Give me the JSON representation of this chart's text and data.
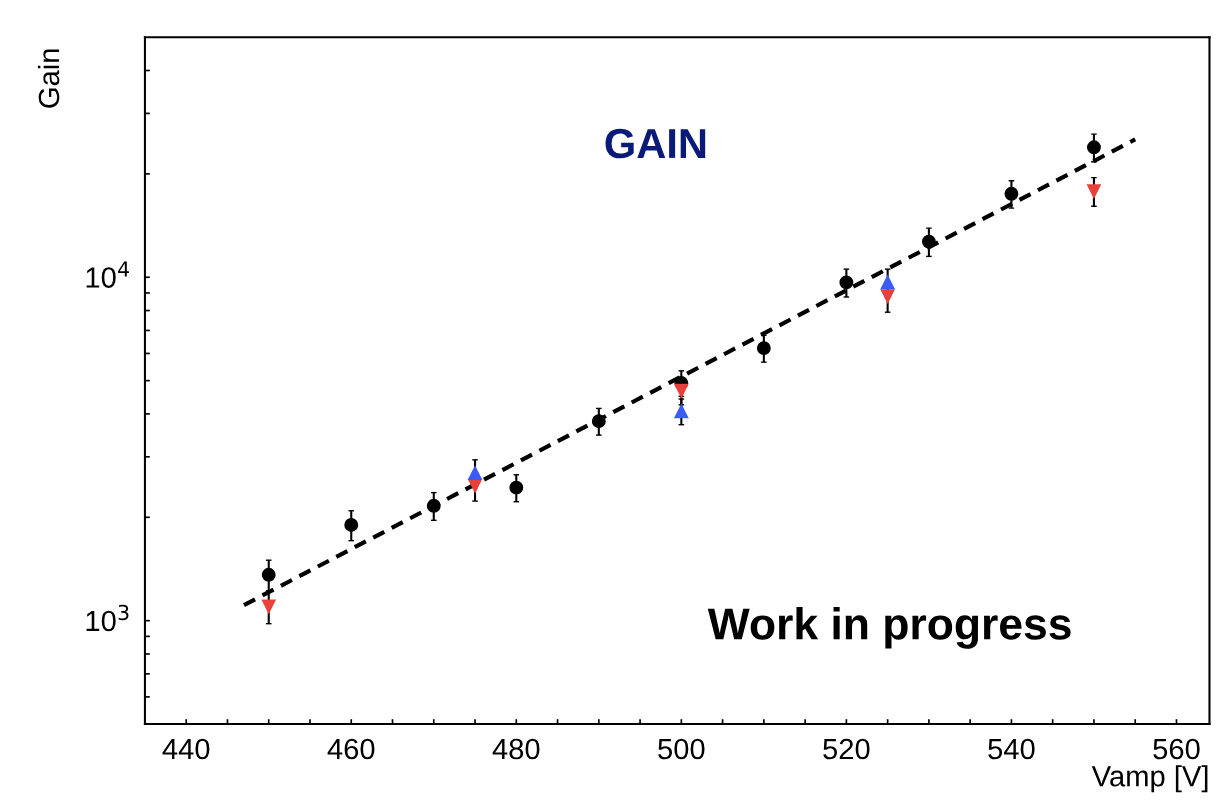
{
  "chart_data": {
    "type": "scatter",
    "xlabel": "Vamp [V]",
    "ylabel": "Gain",
    "log": "y",
    "grid": false,
    "legend": false,
    "annotations": [
      "GAIN",
      "Work in progress"
    ],
    "xlim": [
      435,
      564
    ],
    "ylim": [
      500,
      50000
    ],
    "xticks": [
      440,
      {
        "value": 445,
        "label": null
      },
      {
        "value": 450,
        "label": null
      },
      {
        "value": 455,
        "label": null
      },
      460,
      {
        "value": 465,
        "label": null
      },
      {
        "value": 470,
        "label": null
      },
      {
        "value": 475,
        "label": null
      },
      480,
      {
        "value": 485,
        "label": null
      },
      {
        "value": 490,
        "label": null
      },
      {
        "value": 495,
        "label": null
      },
      500,
      {
        "value": 505,
        "label": null
      },
      {
        "value": 510,
        "label": null
      },
      {
        "value": 515,
        "label": null
      },
      520,
      {
        "value": 525,
        "label": null
      },
      {
        "value": 530,
        "label": null
      },
      {
        "value": 535,
        "label": null
      },
      540,
      {
        "value": 545,
        "label": null
      },
      {
        "value": 550,
        "label": null
      },
      {
        "value": 555,
        "label": null
      },
      560
    ],
    "yticks": [
      {
        "value": 600,
        "label": null
      },
      {
        "value": 700,
        "label": null
      },
      {
        "value": 800,
        "label": null
      },
      {
        "value": 900,
        "label": null
      },
      {
        "value": 1000,
        "label": "10$^{3}$"
      },
      {
        "value": 2000,
        "label": null
      },
      {
        "value": 3000,
        "label": null
      },
      {
        "value": 4000,
        "label": null
      },
      {
        "value": 5000,
        "label": null
      },
      {
        "value": 6000,
        "label": null
      },
      {
        "value": 7000,
        "label": null
      },
      {
        "value": 8000,
        "label": null
      },
      {
        "value": 9000,
        "label": null
      },
      {
        "value": 10000,
        "label": "10$^{4}$"
      },
      {
        "value": 20000,
        "label": null
      },
      {
        "value": 30000,
        "label": null
      },
      {
        "value": 40000,
        "label": null
      }
    ],
    "series": [
      {
        "color": "#000000",
        "marker": "circle",
        "x": [
          450,
          460,
          470,
          480,
          490,
          500,
          510,
          520,
          530,
          540,
          550
        ],
        "values": [
          1360,
          1900,
          2160,
          2440,
          3810,
          4920,
          6220,
          9660,
          12700,
          17500,
          23900
        ],
        "errors": [
          140,
          190,
          200,
          220,
          340,
          420,
          560,
          900,
          1200,
          1600,
          2200
        ]
      },
      {
        "color": "#e8413c",
        "marker": "triangle_down",
        "x": [
          450,
          475,
          500,
          525,
          550
        ],
        "values": [
          1100,
          2470,
          4670,
          8810,
          17800
        ],
        "errors": [
          120,
          240,
          420,
          900,
          1700
        ]
      },
      {
        "color": "#3b5bf5",
        "marker": "triangle",
        "x": [
          475,
          500,
          525
        ],
        "values": [
          2690,
          4070,
          9660
        ],
        "errors": [
          250,
          350,
          900
        ]
      },
      {
        "type": "line",
        "color": "#000000",
        "line_style": "dashed",
        "marker": "none",
        "x": [
          447,
          555
        ],
        "values": [
          1110,
          25200
        ]
      }
    ]
  }
}
